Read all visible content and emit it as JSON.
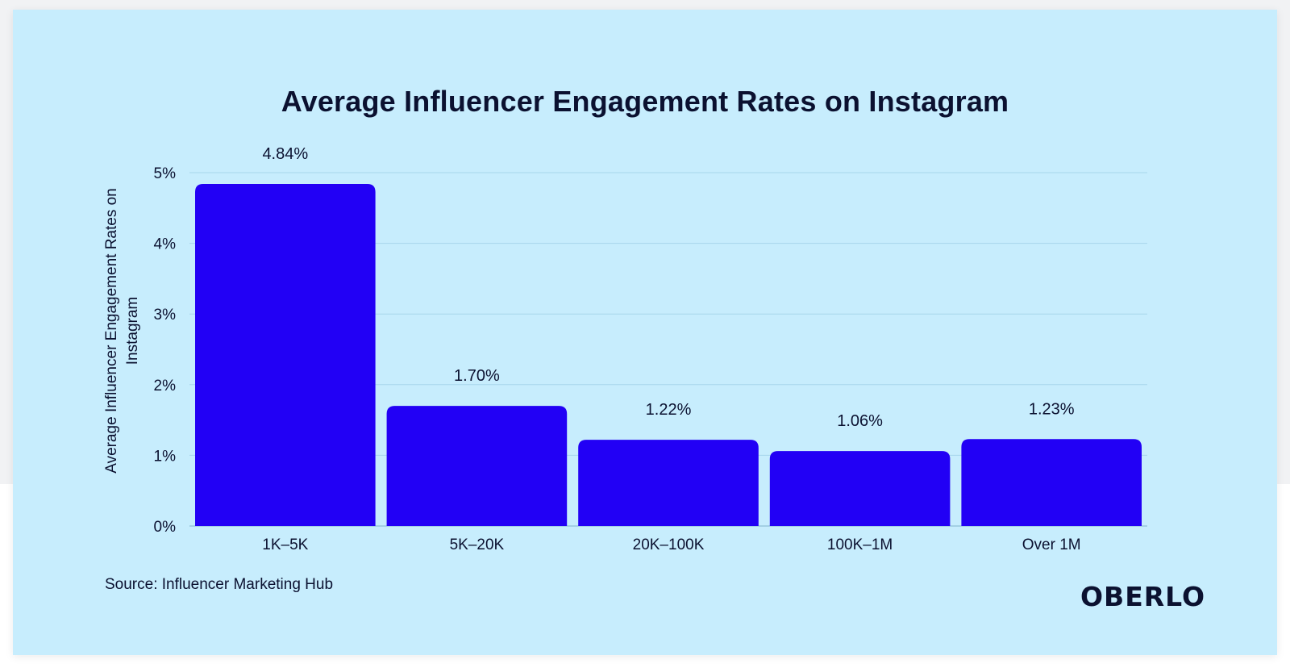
{
  "source": "Source: Influencer Marketing Hub",
  "logo": "OBERLO",
  "colors": {
    "bar": "#2200f5",
    "card_background": "#c7edfd",
    "text": "#0b1130",
    "gridline": "#a7d6ec"
  },
  "chart_data": {
    "type": "bar",
    "title": "Average Influencer Engagement Rates on Instagram",
    "ylabel": "Average Influencer Engagement Rates on Instagram",
    "xlabel": "",
    "categories": [
      "1K–5K",
      "5K–20K",
      "20K–100K",
      "100K–1M",
      "Over 1M"
    ],
    "values": [
      4.84,
      1.7,
      1.22,
      1.06,
      1.23
    ],
    "data_labels": [
      "4.84%",
      "1.70%",
      "1.22%",
      "1.06%",
      "1.23%"
    ],
    "ylim": [
      0,
      5
    ],
    "yticks": [
      "0%",
      "1%",
      "2%",
      "3%",
      "4%",
      "5%"
    ],
    "grid": true,
    "legend": "none"
  }
}
